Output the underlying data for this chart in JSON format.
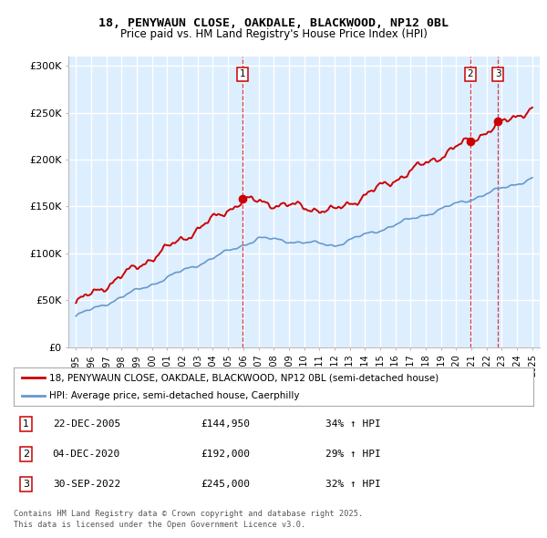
{
  "title": "18, PENYWAUN CLOSE, OAKDALE, BLACKWOOD, NP12 0BL",
  "subtitle": "Price paid vs. HM Land Registry's House Price Index (HPI)",
  "legend_line1": "18, PENYWAUN CLOSE, OAKDALE, BLACKWOOD, NP12 0BL (semi-detached house)",
  "legend_line2": "HPI: Average price, semi-detached house, Caerphilly",
  "footer1": "Contains HM Land Registry data © Crown copyright and database right 2025.",
  "footer2": "This data is licensed under the Open Government Licence v3.0.",
  "sales": [
    {
      "num": 1,
      "date": "22-DEC-2005",
      "date_x": 2005.97,
      "price": 144950,
      "pct": "34%",
      "dir": "↑"
    },
    {
      "num": 2,
      "date": "04-DEC-2020",
      "date_x": 2020.92,
      "price": 192000,
      "pct": "29%",
      "dir": "↑"
    },
    {
      "num": 3,
      "date": "30-SEP-2022",
      "date_x": 2022.75,
      "price": 245000,
      "pct": "32%",
      "dir": "↑"
    }
  ],
  "ylim": [
    0,
    310000
  ],
  "xlim": [
    1994.5,
    2025.5
  ],
  "red_color": "#cc0000",
  "blue_color": "#6699cc",
  "bg_color": "#ddeeff",
  "grid_color": "#ffffff",
  "sale_line_color": "#cc0000"
}
